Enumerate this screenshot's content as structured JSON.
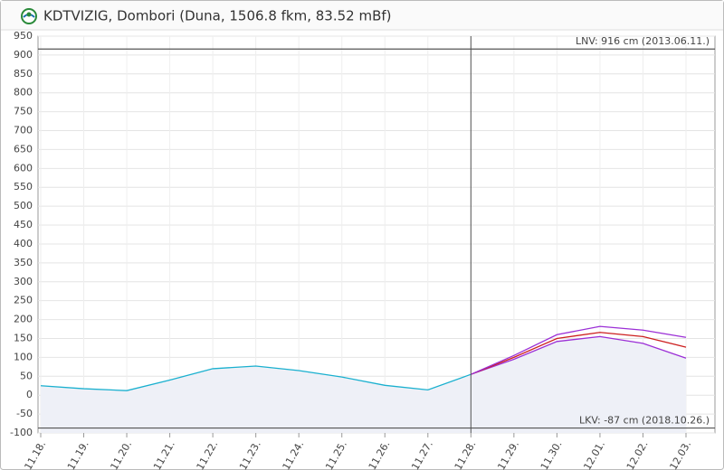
{
  "chart_data": {
    "type": "line",
    "title": "KDTVIZIG, Dombori (Duna, 1506.8 fkm, 83.52 mBf)",
    "categories": [
      "11.18.",
      "11.19.",
      "11.20.",
      "11.21.",
      "11.22.",
      "11.23.",
      "11.24.",
      "11.25.",
      "11.26.",
      "11.27.",
      "11.28.",
      "11.29.",
      "11.30.",
      "12.01.",
      "12.02.",
      "12.03."
    ],
    "series": [
      {
        "color": "#1ab0cf",
        "area": true,
        "values": [
          25,
          17,
          12,
          40,
          70,
          77,
          65,
          48,
          26,
          14,
          55,
          null,
          null,
          null,
          null,
          null
        ]
      },
      {
        "color": "#9b2fd6",
        "area": true,
        "values": [
          null,
          null,
          null,
          null,
          null,
          null,
          null,
          null,
          null,
          null,
          55,
          95,
          142,
          155,
          137,
          98
        ]
      },
      {
        "color": "#cc1f1f",
        "area": false,
        "values": [
          null,
          null,
          null,
          null,
          null,
          null,
          null,
          null,
          null,
          null,
          55,
          100,
          150,
          166,
          155,
          127
        ]
      },
      {
        "color": "#9b2fd6",
        "area": false,
        "values": [
          null,
          null,
          null,
          null,
          null,
          null,
          null,
          null,
          null,
          null,
          55,
          105,
          160,
          182,
          172,
          153
        ]
      }
    ],
    "ylim": [
      -100,
      950
    ],
    "yticks": [
      -100,
      -50,
      0,
      50,
      100,
      150,
      200,
      250,
      300,
      350,
      400,
      450,
      500,
      550,
      600,
      650,
      700,
      750,
      800,
      850,
      900,
      950
    ],
    "grid": true,
    "reference_lines": [
      {
        "value": 916,
        "label": "LNV: 916 cm (2013.06.11.)"
      },
      {
        "value": -87,
        "label": "LKV: -87 cm (2018.10.26.)"
      }
    ],
    "vline": "11.28."
  }
}
